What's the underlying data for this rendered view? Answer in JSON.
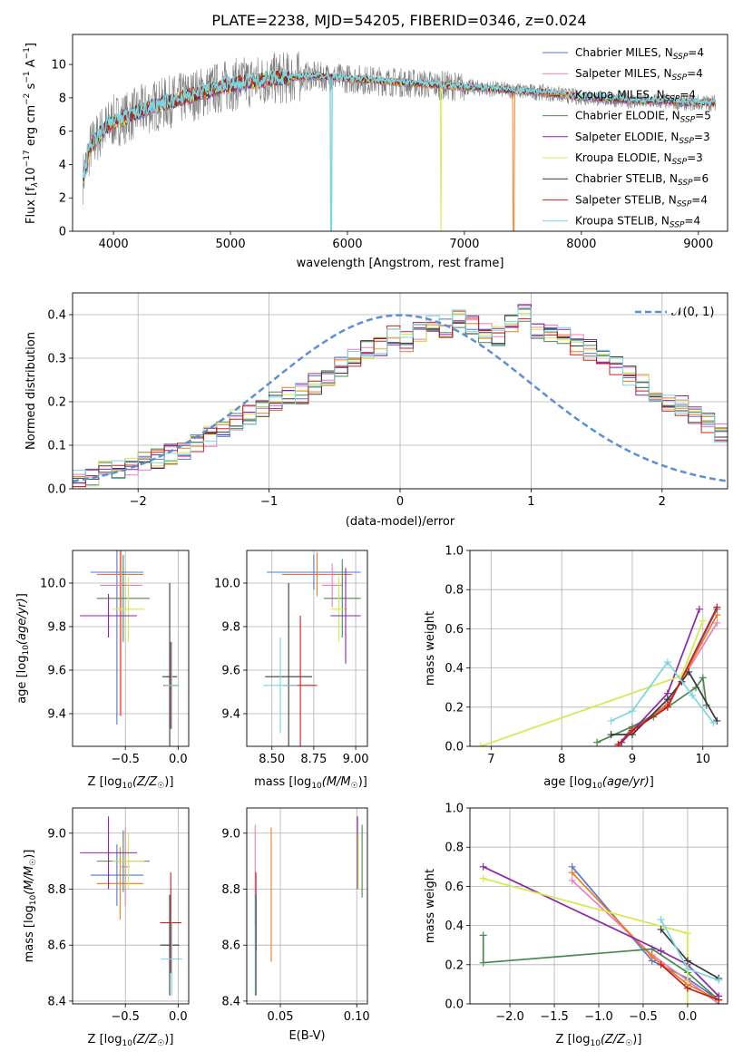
{
  "colors": {
    "chabrier_miles": "#4e79d6",
    "salpeter_miles": "#e87fb8",
    "kroupa_miles": "#f07a1a",
    "chabrier_elodie": "#4a8a52",
    "salpeter_elodie": "#8e24aa",
    "kroupa_elodie": "#d4ea4a",
    "chabrier_stelib": "#3a3a3a",
    "salpeter_stelib": "#c62020",
    "kroupa_stelib": "#7ad6e0",
    "observed": "#808080",
    "gaussian": "#5b8fd6",
    "grid": "#b0b0b0"
  },
  "chart_data": [
    {
      "type": "line",
      "title": "PLATE=2238, MJD=54205, FIBERID=0346, z=0.024",
      "xlabel": "wavelength [Angstrom, rest frame]",
      "ylabel": "Flux [f_λ 10^-17 erg cm^-2 s^-1 A^-1]",
      "xlim": [
        3650,
        9250
      ],
      "ylim": [
        0,
        11.8
      ],
      "xticks": [
        4000,
        5000,
        6000,
        7000,
        8000,
        9000
      ],
      "yticks": [
        0,
        2,
        4,
        6,
        8,
        10
      ],
      "grid": false,
      "legend": "top-right",
      "legend_entries": [
        {
          "key": "chabrier_miles",
          "text": "Chabrier MILES, N",
          "sub": "SSP",
          "tail": "=4"
        },
        {
          "key": "salpeter_miles",
          "text": "Salpeter MILES, N",
          "sub": "SSP",
          "tail": "=4"
        },
        {
          "key": "kroupa_miles",
          "text": "Kroupa MILES, N",
          "sub": "SSP",
          "tail": "=4"
        },
        {
          "key": "chabrier_elodie",
          "text": "Chabrier ELODIE, N",
          "sub": "SSP",
          "tail": "=5"
        },
        {
          "key": "salpeter_elodie",
          "text": "Salpeter ELODIE, N",
          "sub": "SSP",
          "tail": "=3"
        },
        {
          "key": "kroupa_elodie",
          "text": "Kroupa ELODIE, N",
          "sub": "SSP",
          "tail": "=3"
        },
        {
          "key": "chabrier_stelib",
          "text": "Chabrier STELIB, N",
          "sub": "SSP",
          "tail": "=6"
        },
        {
          "key": "salpeter_stelib",
          "text": "Salpeter STELIB, N",
          "sub": "SSP",
          "tail": "=4"
        },
        {
          "key": "kroupa_stelib",
          "text": "Kroupa STELIB, N",
          "sub": "SSP",
          "tail": "=4"
        }
      ],
      "continuum": [
        [
          3740,
          3.2
        ],
        [
          3800,
          5.0
        ],
        [
          3900,
          6.0
        ],
        [
          4000,
          6.6
        ],
        [
          4100,
          6.8
        ],
        [
          4300,
          7.4
        ],
        [
          4500,
          7.8
        ],
        [
          4700,
          8.2
        ],
        [
          4900,
          8.6
        ],
        [
          5100,
          8.9
        ],
        [
          5300,
          9.1
        ],
        [
          5500,
          9.2
        ],
        [
          5700,
          9.3
        ],
        [
          5900,
          9.2
        ],
        [
          6100,
          9.1
        ],
        [
          6300,
          9.0
        ],
        [
          6500,
          8.9
        ],
        [
          6700,
          8.8
        ],
        [
          6900,
          8.7
        ],
        [
          7100,
          8.6
        ],
        [
          7300,
          8.5
        ],
        [
          7500,
          8.4
        ],
        [
          7700,
          8.3
        ],
        [
          7900,
          8.1
        ],
        [
          8100,
          8.0
        ],
        [
          8300,
          7.9
        ],
        [
          8500,
          7.8
        ],
        [
          8700,
          7.8
        ],
        [
          8900,
          7.7
        ],
        [
          9100,
          7.7
        ]
      ],
      "model_dropouts": [
        {
          "key": "kroupa_stelib",
          "x": 5860
        },
        {
          "key": "kroupa_elodie",
          "x": 6800
        },
        {
          "key": "kroupa_miles",
          "x": 7420
        }
      ]
    },
    {
      "type": "bar",
      "xlabel": "(data-model)/error",
      "ylabel": "Normed distribution",
      "xlim": [
        -2.5,
        2.5
      ],
      "ylim": [
        0,
        0.45
      ],
      "xticks": [
        -2,
        -1,
        0,
        1,
        2
      ],
      "yticks": [
        0.0,
        0.1,
        0.2,
        0.3,
        0.4
      ],
      "grid": true,
      "legend": "top-right",
      "legend_label": "𝒩(0, 1)",
      "bin_width": 0.1,
      "histogram": [
        0.02,
        0.03,
        0.04,
        0.04,
        0.05,
        0.06,
        0.07,
        0.08,
        0.09,
        0.1,
        0.12,
        0.14,
        0.16,
        0.17,
        0.18,
        0.2,
        0.21,
        0.22,
        0.24,
        0.26,
        0.28,
        0.3,
        0.32,
        0.33,
        0.35,
        0.34,
        0.36,
        0.38,
        0.37,
        0.39,
        0.38,
        0.36,
        0.35,
        0.38,
        0.4,
        0.37,
        0.36,
        0.35,
        0.33,
        0.32,
        0.3,
        0.28,
        0.26,
        0.24,
        0.22,
        0.2,
        0.19,
        0.17,
        0.15,
        0.13
      ]
    },
    {
      "type": "scatter",
      "xlabel": "Z [log10(Z/Z☉)]",
      "ylabel": "age [log10(age/yr)]",
      "xlim": [
        -1.0,
        0.1
      ],
      "ylim": [
        9.25,
        10.15
      ],
      "xticks": [
        -0.5,
        0.0
      ],
      "yticks": [
        9.4,
        9.6,
        9.8,
        10.0
      ],
      "grid": true,
      "points": [
        {
          "key": "chabrier_miles",
          "x": -0.58,
          "y": 10.05,
          "xerr": 0.25,
          "yerr": 0.7
        },
        {
          "key": "kroupa_miles",
          "x": -0.55,
          "y": 10.04,
          "xerr": 0.22,
          "yerr": 0.65
        },
        {
          "key": "salpeter_miles",
          "x": -0.54,
          "y": 9.99,
          "xerr": 0.2,
          "yerr": 0.6
        },
        {
          "key": "chabrier_elodie",
          "x": -0.52,
          "y": 9.93,
          "xerr": 0.25,
          "yerr": 0.2
        },
        {
          "key": "kroupa_elodie",
          "x": -0.47,
          "y": 9.88,
          "xerr": 0.15,
          "yerr": 0.15
        },
        {
          "key": "salpeter_elodie",
          "x": -0.66,
          "y": 9.85,
          "xerr": 0.27,
          "yerr": 0.1
        },
        {
          "key": "chabrier_stelib",
          "x": -0.08,
          "y": 9.57,
          "xerr": 0.07,
          "yerr": 0.43
        },
        {
          "key": "salpeter_stelib",
          "x": -0.07,
          "y": 9.53,
          "xerr": 0.07,
          "yerr": 0.2
        },
        {
          "key": "kroupa_stelib",
          "x": -0.06,
          "y": 9.53,
          "xerr": 0.07,
          "yerr": 0.2
        }
      ]
    },
    {
      "type": "scatter",
      "xlabel": "mass [log10(M/M☉)]",
      "ylabel": "",
      "xlim": [
        8.35,
        9.07
      ],
      "ylim": [
        9.25,
        10.15
      ],
      "xticks": [
        8.5,
        8.75,
        9.0
      ],
      "yticks": [
        9.4,
        9.6,
        9.8,
        10.0
      ],
      "grid": true,
      "points": [
        {
          "key": "chabrier_miles",
          "x": 8.75,
          "y": 10.05,
          "xerr": 0.28,
          "yerr": 0.08
        },
        {
          "key": "kroupa_miles",
          "x": 8.77,
          "y": 10.04,
          "xerr": 0.21,
          "yerr": 0.1
        },
        {
          "key": "salpeter_miles",
          "x": 8.86,
          "y": 9.99,
          "xerr": 0.06,
          "yerr": 0.1
        },
        {
          "key": "chabrier_elodie",
          "x": 8.92,
          "y": 9.93,
          "xerr": 0.11,
          "yerr": 0.18
        },
        {
          "key": "kroupa_elodie",
          "x": 8.9,
          "y": 9.88,
          "xerr": 0.05,
          "yerr": 0.15
        },
        {
          "key": "salpeter_elodie",
          "x": 8.94,
          "y": 9.85,
          "xerr": 0.09,
          "yerr": 0.22
        },
        {
          "key": "chabrier_stelib",
          "x": 8.6,
          "y": 9.57,
          "xerr": 0.14,
          "yerr": 0.43
        },
        {
          "key": "salpeter_stelib",
          "x": 8.67,
          "y": 9.53,
          "xerr": 0.1,
          "yerr": 0.32
        },
        {
          "key": "kroupa_stelib",
          "x": 8.55,
          "y": 9.53,
          "xerr": 0.1,
          "yerr": 0.22
        }
      ]
    },
    {
      "type": "line",
      "xlabel": "age [log10(age/yr)]",
      "ylabel": "mass weight",
      "xlim": [
        6.7,
        10.35
      ],
      "ylim": [
        0,
        1.0
      ],
      "xticks": [
        7,
        8,
        9,
        10
      ],
      "yticks": [
        0.0,
        0.2,
        0.4,
        0.6,
        0.8,
        1.0
      ],
      "grid": true,
      "series": [
        {
          "key": "chabrier_miles",
          "x": [
            8.8,
            9.0,
            9.5,
            10.2
          ],
          "y": [
            0.0,
            0.1,
            0.2,
            0.7
          ]
        },
        {
          "key": "salpeter_miles",
          "x": [
            8.8,
            9.0,
            9.5,
            10.2
          ],
          "y": [
            0.0,
            0.08,
            0.22,
            0.63
          ]
        },
        {
          "key": "kroupa_miles",
          "x": [
            8.8,
            9.0,
            9.5,
            10.2
          ],
          "y": [
            0.0,
            0.09,
            0.21,
            0.67
          ]
        },
        {
          "key": "chabrier_elodie",
          "x": [
            8.5,
            9.3,
            9.9,
            10.0,
            10.05
          ],
          "y": [
            0.02,
            0.15,
            0.3,
            0.35,
            0.21
          ]
        },
        {
          "key": "salpeter_elodie",
          "x": [
            8.85,
            9.5,
            9.95
          ],
          "y": [
            0.02,
            0.27,
            0.7
          ]
        },
        {
          "key": "kroupa_elodie",
          "x": [
            6.85,
            9.7,
            10.0
          ],
          "y": [
            0.0,
            0.36,
            0.64
          ]
        },
        {
          "key": "chabrier_stelib",
          "x": [
            8.7,
            9.0,
            9.5,
            9.7,
            9.8,
            10.2
          ],
          "y": [
            0.06,
            0.06,
            0.24,
            0.33,
            0.38,
            0.13
          ]
        },
        {
          "key": "salpeter_stelib",
          "x": [
            8.8,
            9.0,
            9.5,
            10.2
          ],
          "y": [
            0.01,
            0.08,
            0.2,
            0.71
          ]
        },
        {
          "key": "kroupa_stelib",
          "x": [
            8.7,
            9.0,
            9.5,
            9.85,
            10.15
          ],
          "y": [
            0.13,
            0.18,
            0.43,
            0.26,
            0.12
          ]
        }
      ]
    },
    {
      "type": "scatter",
      "xlabel": "Z [log10(Z/Z☉)]",
      "ylabel": "mass [log10(M/M☉)]",
      "xlim": [
        -1.0,
        0.1
      ],
      "ylim": [
        8.39,
        9.09
      ],
      "xticks": [
        -0.5,
        0.0
      ],
      "yticks": [
        8.4,
        8.6,
        8.8,
        9.0
      ],
      "grid": true,
      "points": [
        {
          "key": "chabrier_miles",
          "x": -0.58,
          "y": 8.85,
          "xerr": 0.25,
          "yerr": 0.11
        },
        {
          "key": "kroupa_miles",
          "x": -0.55,
          "y": 8.82,
          "xerr": 0.22,
          "yerr": 0.13
        },
        {
          "key": "salpeter_miles",
          "x": -0.5,
          "y": 8.88,
          "xerr": 0.04,
          "yerr": 0.14
        },
        {
          "key": "chabrier_elodie",
          "x": -0.52,
          "y": 8.9,
          "xerr": 0.25,
          "yerr": 0.11
        },
        {
          "key": "kroupa_elodie",
          "x": -0.47,
          "y": 8.9,
          "xerr": 0.15,
          "yerr": 0.1
        },
        {
          "key": "salpeter_elodie",
          "x": -0.66,
          "y": 8.93,
          "xerr": 0.27,
          "yerr": 0.13
        },
        {
          "key": "chabrier_stelib",
          "x": -0.08,
          "y": 8.6,
          "xerr": 0.09,
          "yerr": 0.18
        },
        {
          "key": "salpeter_stelib",
          "x": -0.07,
          "y": 8.68,
          "xerr": 0.1,
          "yerr": 0.18
        },
        {
          "key": "kroupa_stelib",
          "x": -0.06,
          "y": 8.55,
          "xerr": 0.1,
          "yerr": 0.13
        }
      ]
    },
    {
      "type": "scatter",
      "xlabel": "E(B-V)",
      "ylabel": "",
      "xlim": [
        0.028,
        0.107
      ],
      "ylim": [
        8.39,
        9.09
      ],
      "xticks": [
        0.05,
        0.1
      ],
      "yticks": [
        8.4,
        8.6,
        8.8,
        9.0
      ],
      "grid": true,
      "points": [
        {
          "key": "salpeter_miles",
          "x": 0.0335,
          "y": 8.85,
          "yerr": 0.18
        },
        {
          "key": "salpeter_stelib",
          "x": 0.034,
          "y": 8.72,
          "yerr": 0.14
        },
        {
          "key": "kroupa_stelib",
          "x": 0.0335,
          "y": 8.6,
          "yerr": 0.18
        },
        {
          "key": "chabrier_stelib",
          "x": 0.034,
          "y": 8.6,
          "yerr": 0.18
        },
        {
          "key": "kroupa_miles",
          "x": 0.044,
          "y": 8.78,
          "yerr": 0.24
        },
        {
          "key": "salpeter_elodie",
          "x": 0.1005,
          "y": 8.93,
          "yerr": 0.13
        },
        {
          "key": "kroupa_elodie",
          "x": 0.101,
          "y": 8.9,
          "yerr": 0.1
        },
        {
          "key": "chabrier_elodie",
          "x": 0.1035,
          "y": 8.9,
          "yerr": 0.13
        }
      ]
    },
    {
      "type": "line",
      "xlabel": "Z [log10(Z/Z☉)]",
      "ylabel": "mass weight",
      "xlim": [
        -2.45,
        0.45
      ],
      "ylim": [
        0,
        1.0
      ],
      "xticks": [
        -2.0,
        -1.5,
        -1.0,
        -0.5,
        0.0
      ],
      "yticks": [
        0.0,
        0.2,
        0.4,
        0.6,
        0.8,
        1.0
      ],
      "grid": true,
      "series": [
        {
          "key": "chabrier_miles",
          "x": [
            -1.3,
            -0.4,
            0.0,
            0.35
          ],
          "y": [
            0.7,
            0.22,
            0.13,
            0.02
          ]
        },
        {
          "key": "salpeter_miles",
          "x": [
            -1.3,
            -0.4,
            0.0,
            0.35
          ],
          "y": [
            0.63,
            0.25,
            0.12,
            0.0
          ]
        },
        {
          "key": "kroupa_miles",
          "x": [
            -1.3,
            -0.4,
            0.0,
            0.35
          ],
          "y": [
            0.67,
            0.24,
            0.1,
            0.02
          ]
        },
        {
          "key": "chabrier_elodie",
          "x": [
            -2.3,
            -2.3,
            -0.4,
            0.0,
            0.35
          ],
          "y": [
            0.35,
            0.21,
            0.28,
            0.16,
            0.02
          ]
        },
        {
          "key": "salpeter_elodie",
          "x": [
            -2.3,
            -0.3,
            0.0,
            0.35
          ],
          "y": [
            0.7,
            0.27,
            0.2,
            0.04
          ]
        },
        {
          "key": "kroupa_elodie",
          "x": [
            -2.3,
            0.0,
            0.0
          ],
          "y": [
            0.64,
            0.36,
            0.0
          ]
        },
        {
          "key": "chabrier_stelib",
          "x": [
            -0.3,
            0.0,
            0.35
          ],
          "y": [
            0.38,
            0.22,
            0.13
          ]
        },
        {
          "key": "salpeter_stelib",
          "x": [
            -0.3,
            0.0,
            0.35
          ],
          "y": [
            0.2,
            0.08,
            0.02
          ]
        },
        {
          "key": "kroupa_stelib",
          "x": [
            -0.3,
            0.0,
            0.35
          ],
          "y": [
            0.43,
            0.18,
            0.12
          ]
        }
      ]
    }
  ]
}
